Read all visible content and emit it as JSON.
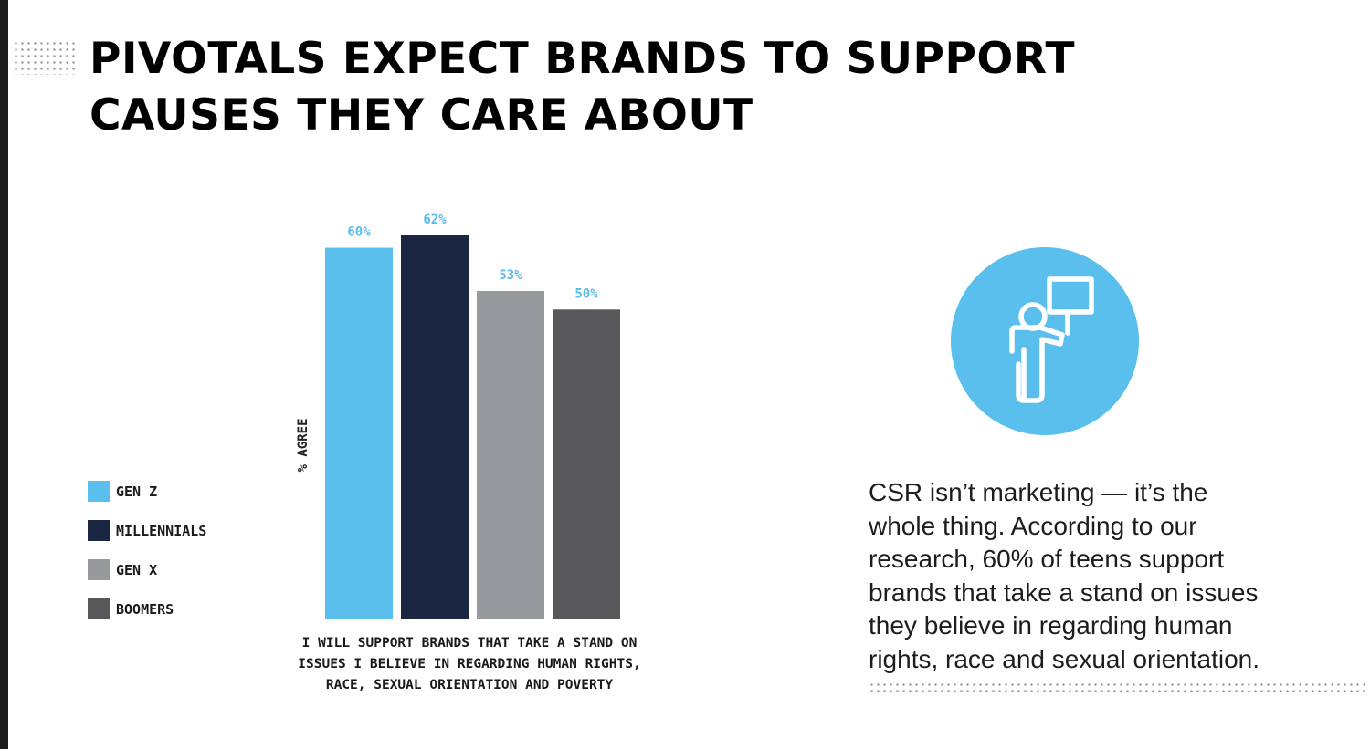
{
  "title": {
    "line1": "PIVOTALS EXPECT BRANDS TO SUPPORT",
    "line2": "CAUSES THEY CARE ABOUT"
  },
  "chart_data": {
    "type": "bar",
    "categories": [
      "GEN Z",
      "MILLENNIALS",
      "GEN X",
      "BOOMERS"
    ],
    "values": [
      60,
      62,
      53,
      50
    ],
    "value_labels": [
      "60%",
      "62%",
      "53%",
      "50%"
    ],
    "colors": [
      "#5bbfee",
      "#1b2742",
      "#98999c",
      "#58585a"
    ],
    "value_label_color": "#5bbbe9",
    "ylabel": "% AGREE",
    "xlabel": "I WILL SUPPORT BRANDS THAT TAKE A STAND ON ISSUES I BELIEVE IN REGARDING HUMAN RIGHTS, RACE, SEXUAL ORIENTATION AND POVERTY",
    "xlabel_lines": [
      "I WILL SUPPORT BRANDS THAT TAKE A STAND ON",
      "ISSUES I BELIEVE IN REGARDING HUMAN RIGHTS,",
      "RACE, SEXUAL ORIENTATION AND POVERTY"
    ],
    "ylim": [
      0,
      70
    ],
    "grid": false,
    "legend_position": "left"
  },
  "legend": [
    {
      "label": "GEN Z",
      "color": "#5bbfee"
    },
    {
      "label": "MILLENNIALS",
      "color": "#1b2742"
    },
    {
      "label": "GEN X",
      "color": "#98999c"
    },
    {
      "label": "BOOMERS",
      "color": "#58585a"
    }
  ],
  "icon": {
    "name": "person-holding-sign-icon",
    "circle_color": "#5bbfee",
    "stroke_color": "#ffffff"
  },
  "body_text": {
    "lines": [
      "CSR isn’t marketing — it’s the",
      "whole thing. According to our",
      "research, 60% of teens support",
      "brands that take a stand on issues",
      "they believe in regarding human",
      "rights, race and sexual orientation."
    ]
  }
}
